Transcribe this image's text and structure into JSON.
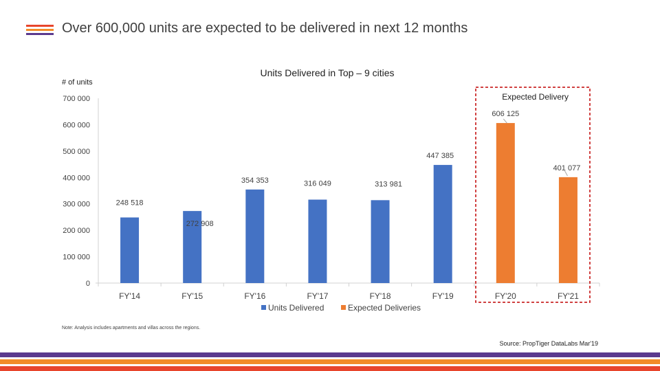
{
  "header": {
    "title": "Over 600,000 units are expected to be delivered in next 12 months",
    "accent_colors": [
      "#E8452C",
      "#F28C28",
      "#5B3A8E"
    ]
  },
  "chart_data": {
    "type": "bar",
    "title": "Units Delivered in Top – 9 cities",
    "ylabel": "# of units",
    "xlabel": "",
    "ylim": [
      0,
      700000
    ],
    "yticks": [
      0,
      100000,
      200000,
      300000,
      400000,
      500000,
      600000,
      700000
    ],
    "ytick_labels": [
      "0",
      "100 000",
      "200 000",
      "300 000",
      "400 000",
      "500 000",
      "600 000",
      "700 000"
    ],
    "categories": [
      "FY'14",
      "FY'15",
      "FY'16",
      "FY'17",
      "FY'18",
      "FY'19",
      "FY'20",
      "FY'21"
    ],
    "series": [
      {
        "name": "Units Delivered",
        "color": "#4472C4",
        "values": [
          248518,
          272908,
          354353,
          316049,
          313981,
          447385,
          null,
          null
        ],
        "labels": [
          "248 518",
          "272 908",
          "354 353",
          "316 049",
          "313 981",
          "447 385",
          "",
          ""
        ]
      },
      {
        "name": "Expected Deliveries",
        "color": "#ED7D31",
        "values": [
          null,
          null,
          null,
          null,
          null,
          null,
          606125,
          401077
        ],
        "labels": [
          "",
          "",
          "",
          "",
          "",
          "",
          "606 125",
          "401 077"
        ]
      }
    ],
    "legend_position": "bottom",
    "annotation": {
      "label": "Expected Delivery",
      "box_color": "#C00000",
      "categories": [
        "FY'20",
        "FY'21"
      ]
    }
  },
  "footer": {
    "note": "Note: Analysis includes apartments and villas across the regions.",
    "source": "Source: PropTiger DataLabs Mar'19",
    "bar_colors": [
      "#5B3A8E",
      "#F28C28",
      "#E8452C"
    ]
  }
}
